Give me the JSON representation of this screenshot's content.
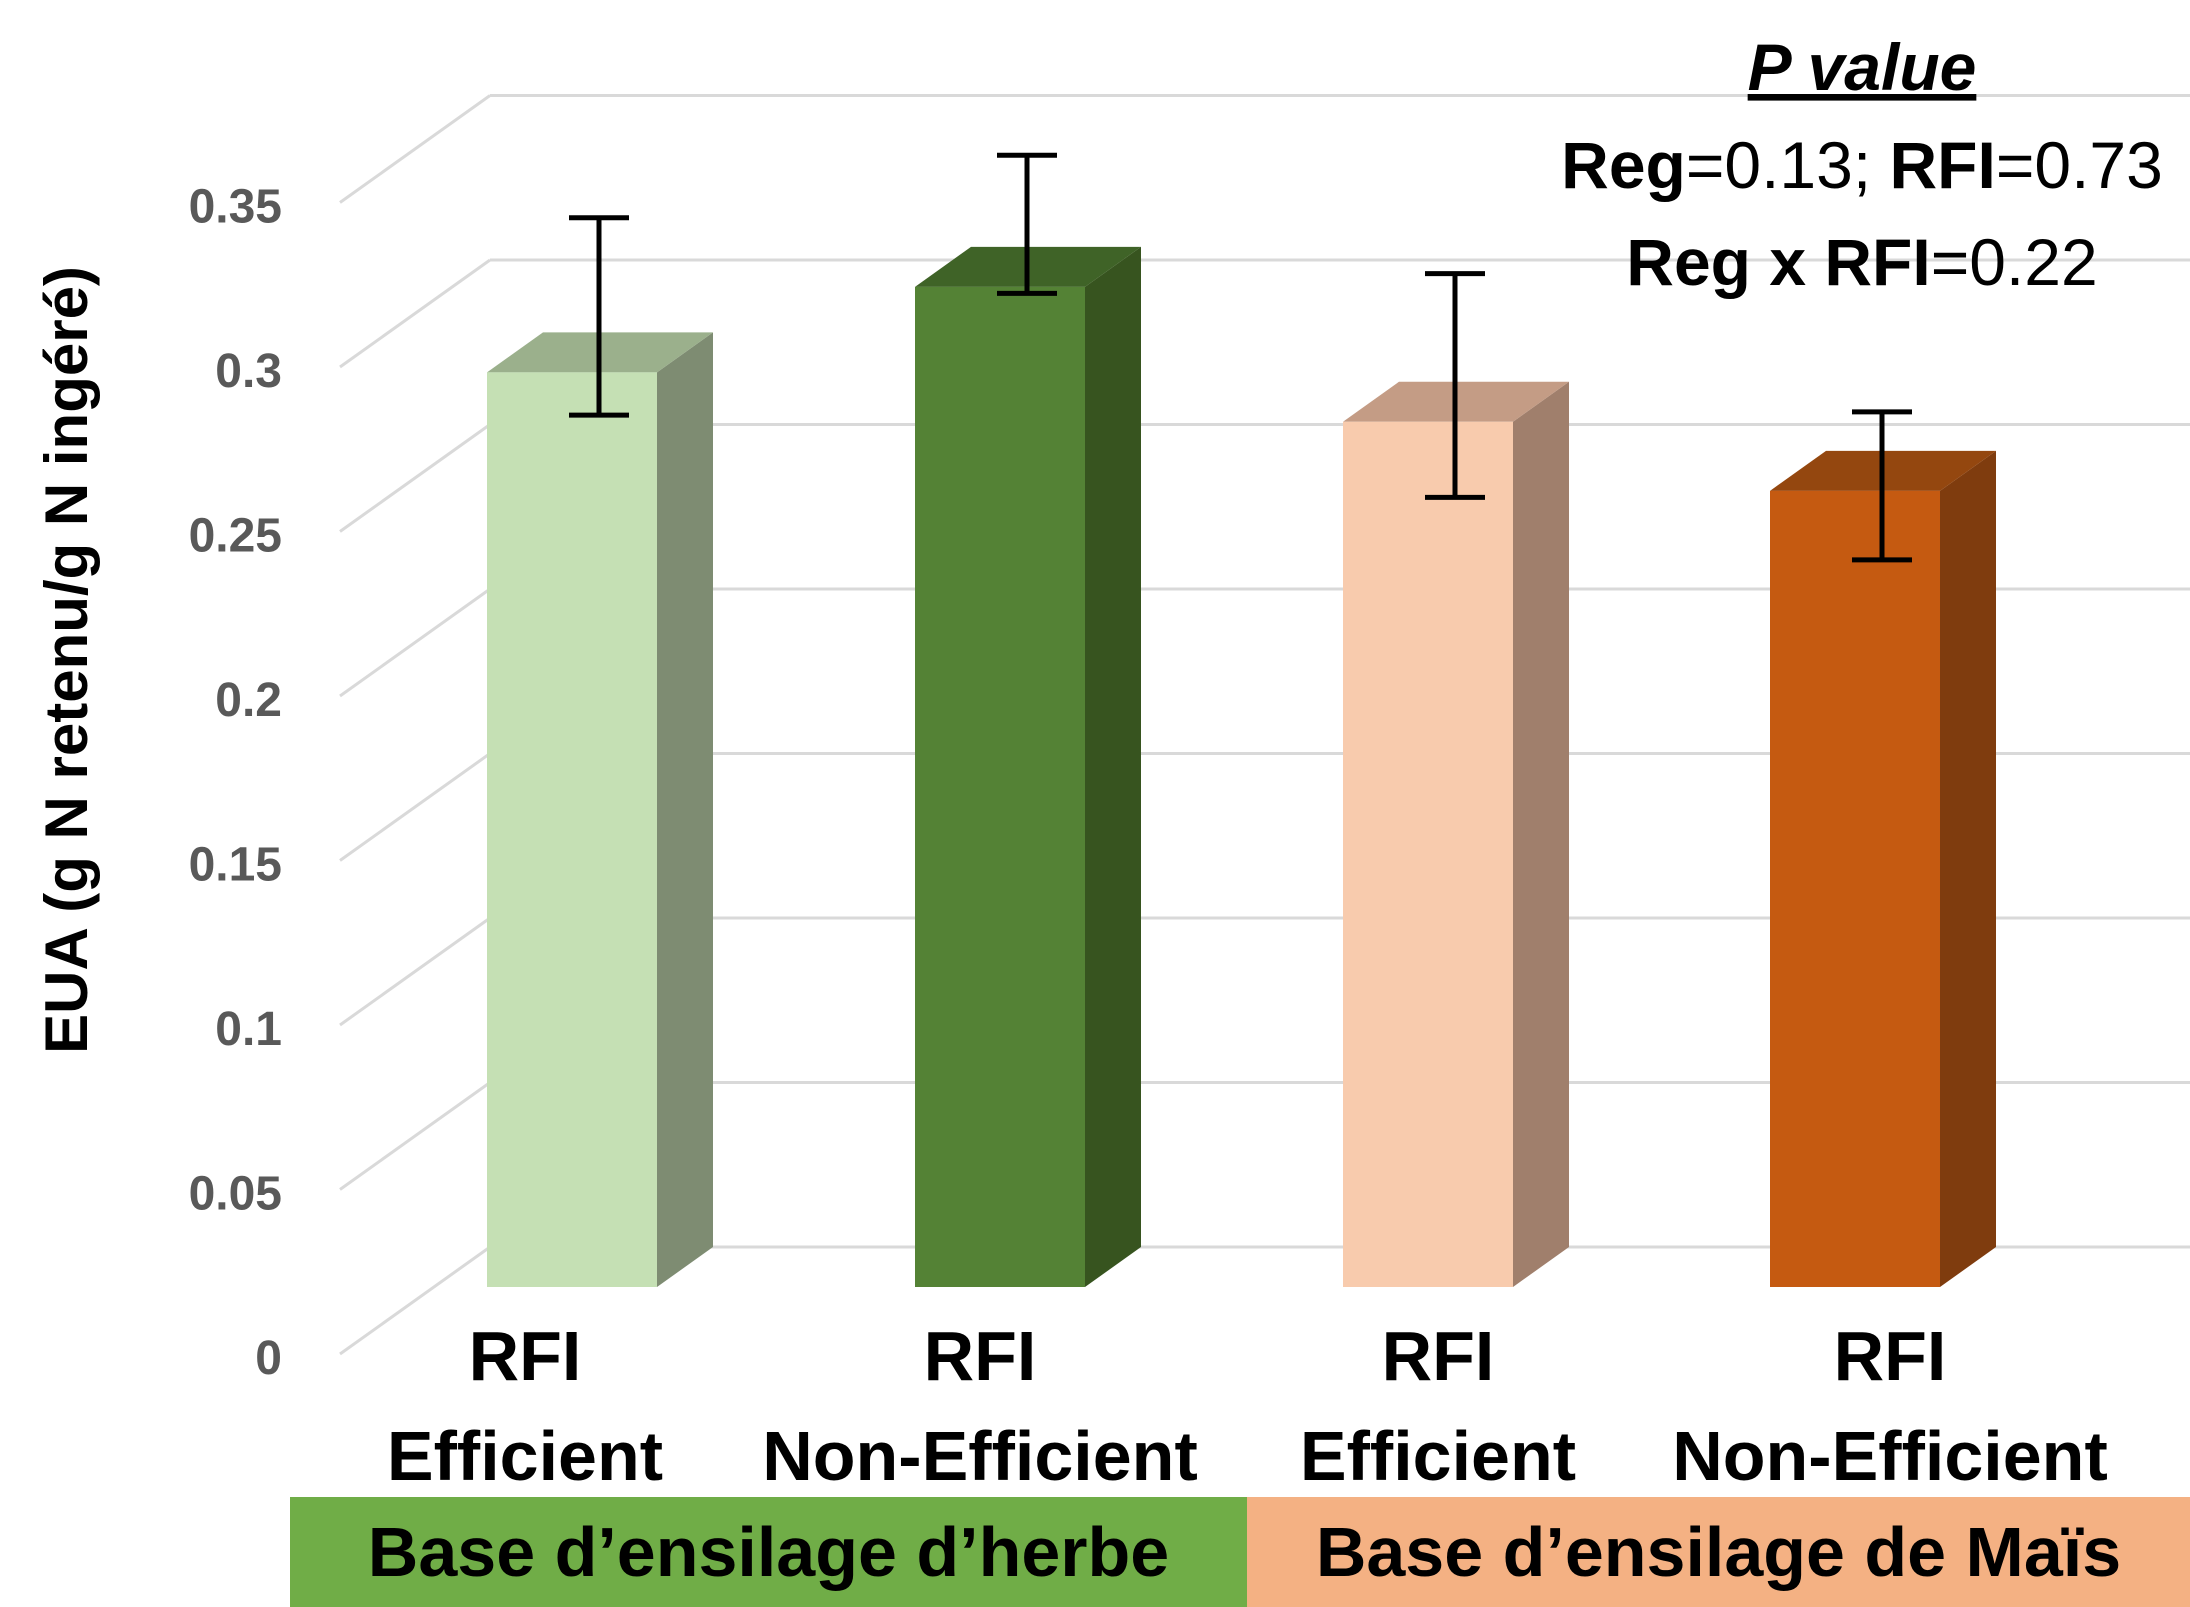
{
  "chart_data": {
    "type": "bar",
    "style": "3d-column",
    "ylabel": "EUA (g N retenu/g N ingéré)",
    "ylim": [
      0,
      0.35
    ],
    "yticks": [
      "0",
      "0.05",
      "0.1",
      "0.15",
      "0.2",
      "0.25",
      "0.3",
      "0.35"
    ],
    "grid": true,
    "categories": [
      {
        "line1": "RFI",
        "line2": "Efficient",
        "group": "Base d’ensilage d’herbe"
      },
      {
        "line1": "RFI",
        "line2": "Non-Efficient",
        "group": "Base d’ensilage d’herbe"
      },
      {
        "line1": "RFI",
        "line2": "Efficient",
        "group": "Base d’ensilage de Maïs"
      },
      {
        "line1": "RFI",
        "line2": "Non-Efficient",
        "group": "Base d’ensilage de Maïs"
      }
    ],
    "values": [
      0.278,
      0.304,
      0.263,
      0.242
    ],
    "error_low": [
      0.265,
      0.302,
      0.24,
      0.221
    ],
    "error_high": [
      0.325,
      0.344,
      0.308,
      0.266
    ],
    "bar_colors": [
      "#c5e0b4",
      "#548235",
      "#f8cbad",
      "#c55a11"
    ],
    "side_colors": [
      "#7e8c72",
      "#37541f",
      "#a07f6c",
      "#7f3c0e"
    ],
    "top_colors": [
      "#9bb08c",
      "#3f6327",
      "#c49c85",
      "#94470f"
    ],
    "groups": [
      {
        "label": "Base d’ensilage d’herbe",
        "color": "#70ad47"
      },
      {
        "label": "Base d’ensilage de Maïs",
        "color": "#f4b183"
      }
    ],
    "annotation": {
      "title": "P value",
      "line1": [
        {
          "text": "Reg",
          "bold": true
        },
        {
          "text": "=0.13; ",
          "bold": false
        },
        {
          "text": "RFI",
          "bold": true
        },
        {
          "text": "=0.73",
          "bold": false
        }
      ],
      "line2": [
        {
          "text": "Reg x RFI",
          "bold": true
        },
        {
          "text": "=0.22",
          "bold": false
        }
      ]
    }
  }
}
